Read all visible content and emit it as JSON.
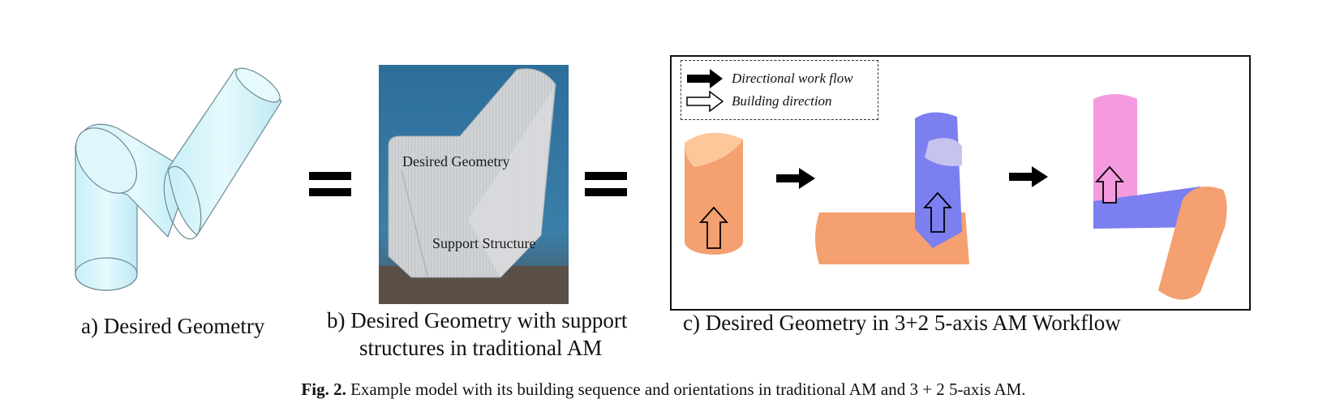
{
  "panel_a": {
    "caption": "a) Desired Geometry"
  },
  "panel_b": {
    "caption_line1": "b) Desired Geometry with support",
    "caption_line2": "structures in traditional AM",
    "label_geometry": "Desired Geometry",
    "label_support": "Support Structure"
  },
  "panel_c": {
    "caption": "c) Desired Geometry in 3+2 5-axis AM Workflow",
    "legend_workflow": "Directional work flow",
    "legend_building": "Building direction"
  },
  "figure": {
    "label": "Fig. 2.",
    "text": "Example model with its building sequence and orientations in traditional AM and 3 + 2 5-axis AM."
  },
  "colors": {
    "cyan_fill": "#d6f4fb",
    "orange": "#f4a070",
    "blue": "#7b7ff0",
    "pink": "#f59adf"
  }
}
